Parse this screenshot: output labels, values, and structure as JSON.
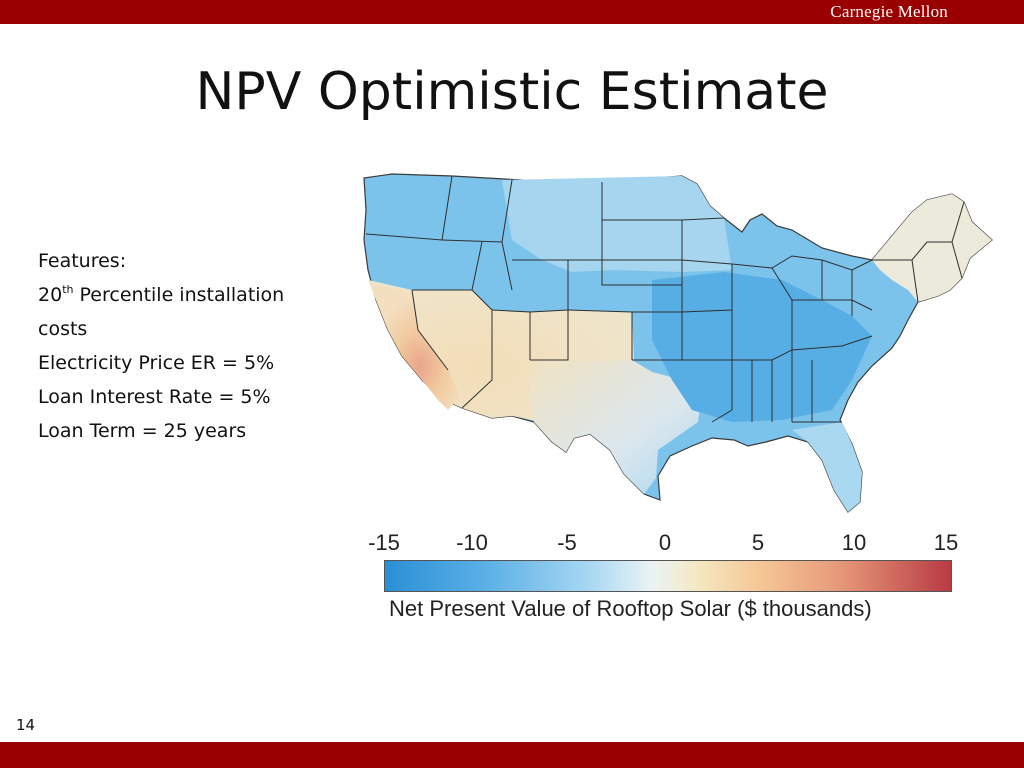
{
  "header": {
    "brand": "Carnegie Mellon"
  },
  "slide": {
    "title": "NPV Optimistic Estimate",
    "page_number": "14"
  },
  "features": {
    "heading": "Features:",
    "percentile_number": "20",
    "percentile_suffix": "th",
    "percentile_rest": " Percentile installation",
    "percentile_wrap": "costs",
    "electricity": "Electricity Price ER = 5%",
    "loan_rate": "Loan Interest Rate = 5%",
    "loan_term": "Loan Term = 25 years"
  },
  "legend": {
    "ticks": [
      "-15",
      "-10",
      "-5",
      "0",
      "5",
      "10",
      "15"
    ],
    "label": "Net Present Value of Rooftop Solar ($ thousands)",
    "min": -15,
    "max": 15
  },
  "colors": {
    "banner": "#990000",
    "negative_strong": "#2b8fd4",
    "negative_mild": "#a8d7f2",
    "zero": "#eaf3f5",
    "positive_mild": "#f5e8c4",
    "positive_strong": "#b83a44"
  }
}
